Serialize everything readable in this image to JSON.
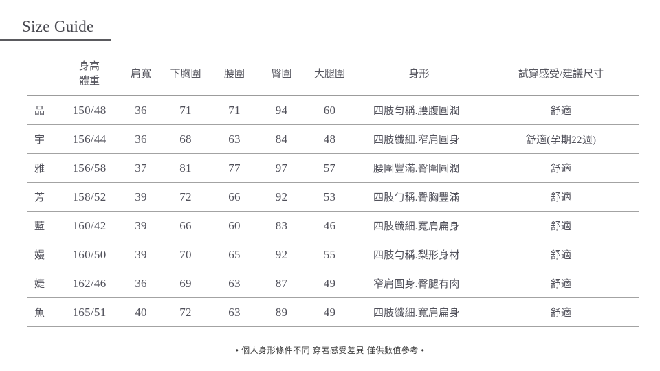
{
  "page": {
    "title": "Size Guide",
    "footer_note": "• 個人身形條件不同 穿著感受差異 僅供數值參考 •"
  },
  "colors": {
    "text": "#4b4b52",
    "row_line": "#a3a3a3",
    "title_underline": "#5a5a5e"
  },
  "table": {
    "headers": {
      "name": "",
      "height_weight_line1": "身高",
      "height_weight_line2": "體重",
      "shoulder": "肩寬",
      "under_bust": "下胸圍",
      "waist": "腰圍",
      "hip": "臀圍",
      "thigh": "大腿圍",
      "body_shape": "身形",
      "fit": "試穿感受/建議尺寸"
    },
    "rows": [
      {
        "name": "品",
        "height_weight": "150/48",
        "shoulder": "36",
        "under_bust": "71",
        "waist": "71",
        "hip": "94",
        "thigh": "60",
        "body_shape": "四肢勻稱.腰腹圓潤",
        "fit": "舒適"
      },
      {
        "name": "宇",
        "height_weight": "156/44",
        "shoulder": "36",
        "under_bust": "68",
        "waist": "63",
        "hip": "84",
        "thigh": "48",
        "body_shape": "四肢纖細.窄肩圓身",
        "fit": "舒適(孕期22週)"
      },
      {
        "name": "雅",
        "height_weight": "156/58",
        "shoulder": "37",
        "under_bust": "81",
        "waist": "77",
        "hip": "97",
        "thigh": "57",
        "body_shape": "腰圍豐滿.臀圍圓潤",
        "fit": "舒適"
      },
      {
        "name": "芳",
        "height_weight": "158/52",
        "shoulder": "39",
        "under_bust": "72",
        "waist": "66",
        "hip": "92",
        "thigh": "53",
        "body_shape": "四肢勻稱.臀胸豐滿",
        "fit": "舒適"
      },
      {
        "name": "藍",
        "height_weight": "160/42",
        "shoulder": "39",
        "under_bust": "66",
        "waist": "60",
        "hip": "83",
        "thigh": "46",
        "body_shape": "四肢纖細.寬肩扁身",
        "fit": "舒適"
      },
      {
        "name": "嫚",
        "height_weight": "160/50",
        "shoulder": "39",
        "under_bust": "70",
        "waist": "65",
        "hip": "92",
        "thigh": "55",
        "body_shape": "四肢勻稱.梨形身材",
        "fit": "舒適"
      },
      {
        "name": "婕",
        "height_weight": "162/46",
        "shoulder": "36",
        "under_bust": "69",
        "waist": "63",
        "hip": "87",
        "thigh": "49",
        "body_shape": "窄肩圓身.臀腿有肉",
        "fit": "舒適"
      },
      {
        "name": "魚",
        "height_weight": "165/51",
        "shoulder": "40",
        "under_bust": "72",
        "waist": "63",
        "hip": "89",
        "thigh": "49",
        "body_shape": "四肢纖細.寬肩扁身",
        "fit": "舒適"
      }
    ]
  }
}
